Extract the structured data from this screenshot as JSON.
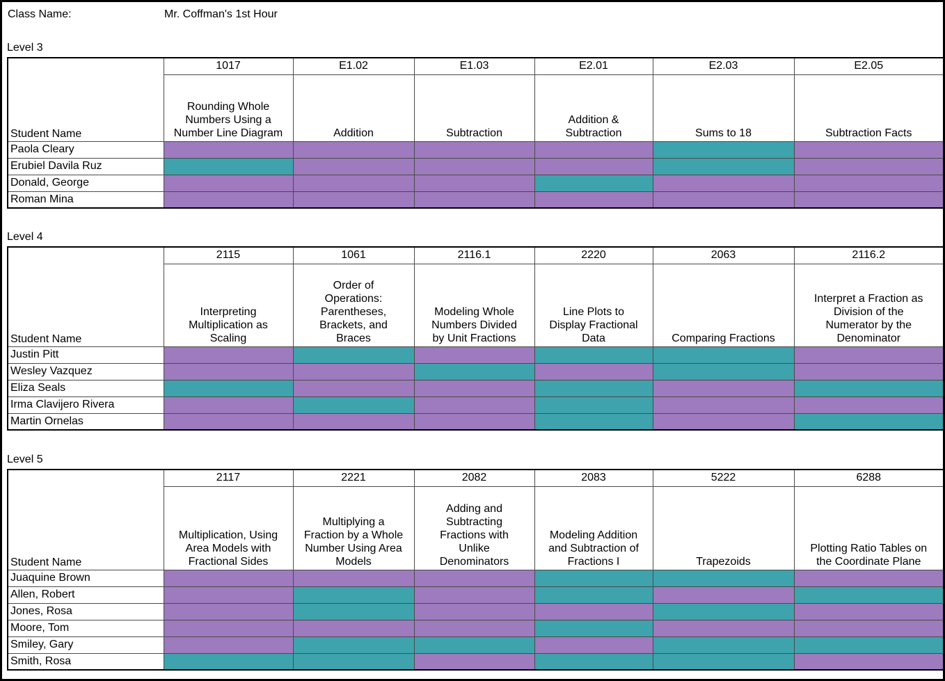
{
  "header": {
    "class_name_label": "Class Name:",
    "class_name_value": "Mr. Coffman's 1st Hour"
  },
  "student_name_header": "Student Name",
  "colors": {
    "purple": "#9E7ABE",
    "teal": "#3EA3AC"
  },
  "levels": [
    {
      "label": "Level 3",
      "columns": [
        {
          "code": "1017",
          "title": "Rounding Whole\nNumbers Using a\nNumber Line Diagram"
        },
        {
          "code": "E1.02",
          "title": "Addition"
        },
        {
          "code": "E1.03",
          "title": "Subtraction"
        },
        {
          "code": "E2.01",
          "title": "Addition &\nSubtraction"
        },
        {
          "code": "E2.03",
          "title": "Sums to 18"
        },
        {
          "code": "E2.05",
          "title": "Subtraction Facts"
        }
      ],
      "rows": [
        {
          "name": "Paola Cleary",
          "cells": [
            "purple",
            "purple",
            "purple",
            "purple",
            "teal",
            "purple"
          ]
        },
        {
          "name": "Erubiel Davila Ruz",
          "cells": [
            "teal",
            "purple",
            "purple",
            "purple",
            "teal",
            "purple"
          ]
        },
        {
          "name": "Donald, George",
          "cells": [
            "purple",
            "purple",
            "purple",
            "teal",
            "purple",
            "purple"
          ]
        },
        {
          "name": "Roman Mina",
          "cells": [
            "purple",
            "purple",
            "purple",
            "purple",
            "purple",
            "purple"
          ]
        }
      ]
    },
    {
      "label": "Level 4",
      "columns": [
        {
          "code": "2115",
          "title": "Interpreting\nMultiplication as\nScaling"
        },
        {
          "code": "1061",
          "title": "Order of\nOperations:\nParentheses,\nBrackets, and\nBraces"
        },
        {
          "code": "2116.1",
          "title": "Modeling Whole\nNumbers Divided\nby Unit Fractions"
        },
        {
          "code": "2220",
          "title": "Line Plots to\nDisplay Fractional\nData"
        },
        {
          "code": "2063",
          "title": "Comparing Fractions"
        },
        {
          "code": "2116.2",
          "title": "Interpret a Fraction as\nDivision of the\nNumerator by the\nDenominator"
        }
      ],
      "rows": [
        {
          "name": "Justin Pitt",
          "cells": [
            "purple",
            "teal",
            "purple",
            "teal",
            "teal",
            "purple"
          ]
        },
        {
          "name": "Wesley Vazquez",
          "cells": [
            "purple",
            "purple",
            "teal",
            "purple",
            "teal",
            "purple"
          ]
        },
        {
          "name": "Eliza Seals",
          "cells": [
            "teal",
            "purple",
            "purple",
            "teal",
            "purple",
            "teal"
          ]
        },
        {
          "name": "Irma Clavijero Rivera",
          "cells": [
            "purple",
            "teal",
            "purple",
            "teal",
            "purple",
            "purple"
          ]
        },
        {
          "name": "Martin Ornelas",
          "cells": [
            "purple",
            "purple",
            "purple",
            "teal",
            "purple",
            "teal"
          ]
        }
      ]
    },
    {
      "label": "Level 5",
      "columns": [
        {
          "code": "2117",
          "title": "Multiplication, Using\nArea Models with\nFractional Sides"
        },
        {
          "code": "2221",
          "title": "Multiplying a\nFraction by a Whole\nNumber Using Area\nModels"
        },
        {
          "code": "2082",
          "title": "Adding and\nSubtracting\nFractions with\nUnlike\nDenominators"
        },
        {
          "code": "2083",
          "title": "Modeling Addition\nand Subtraction of\nFractions I"
        },
        {
          "code": "5222",
          "title": "Trapezoids"
        },
        {
          "code": "6288",
          "title": "Plotting Ratio Tables on\nthe Coordinate Plane"
        }
      ],
      "rows": [
        {
          "name": "Juaquine Brown",
          "cells": [
            "purple",
            "purple",
            "purple",
            "teal",
            "teal",
            "purple"
          ]
        },
        {
          "name": "Allen, Robert",
          "cells": [
            "purple",
            "teal",
            "purple",
            "teal",
            "purple",
            "teal"
          ]
        },
        {
          "name": "Jones, Rosa",
          "cells": [
            "purple",
            "teal",
            "purple",
            "purple",
            "teal",
            "purple"
          ]
        },
        {
          "name": "Moore, Tom",
          "cells": [
            "purple",
            "purple",
            "purple",
            "teal",
            "purple",
            "purple"
          ]
        },
        {
          "name": "Smiley, Gary",
          "cells": [
            "purple",
            "teal",
            "teal",
            "purple",
            "teal",
            "teal"
          ]
        },
        {
          "name": "Smith, Rosa",
          "cells": [
            "teal",
            "teal",
            "purple",
            "teal",
            "teal",
            "purple"
          ]
        }
      ]
    }
  ]
}
